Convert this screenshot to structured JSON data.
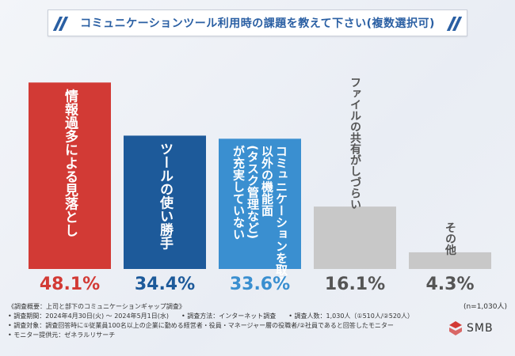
{
  "title": "コミュニケーションツール利用時の課題を教えて下さい(複数選択可)",
  "chart_data": {
    "type": "bar",
    "categories": [
      "情報過多による見落とし",
      "ツールの使い勝手",
      "コミュニケーションを取る以外の機能面(タスク管理など)が充実していない",
      "ファイルの共有がしづらい",
      "その他"
    ],
    "values": [
      48.1,
      34.4,
      33.6,
      16.1,
      4.3
    ],
    "value_labels": [
      "48.1%",
      "34.4%",
      "33.6%",
      "16.1%",
      "4.3%"
    ],
    "bar_label_columns": [
      [
        "情報過多による見落とし"
      ],
      [
        "ツールの使い勝手"
      ],
      [
        "コミュニケーションを取る",
        "以外の機能面",
        "(タスク管理など)",
        "が充実していない"
      ],
      [
        "ファイルの共有がしづらい"
      ],
      [
        "その他"
      ]
    ],
    "colors": [
      "#d23a35",
      "#1d5a9a",
      "#3a8fd0",
      "#c8c8c8",
      "#c8c8c8"
    ],
    "value_colors": [
      "#d23a35",
      "#1d5a9a",
      "#3a8fd0",
      "#555555",
      "#555555"
    ],
    "ylim": [
      0,
      50
    ],
    "n_label": "(n=1,030人)"
  },
  "notes": [
    "《調査概要：上司と部下のコミュニケーションギャップ調査》",
    "• 調査期間：2024年4月30日(火) ～ 2024年5月1日(水)　　• 調査方法：インターネット調査　　• 調査人数：1,030人（①510人/②520人）",
    "• 調査対象：調査回答時に①従業員100名以上の企業に勤める経営者・役員・マネージャー層の役職者/②社員であると回答したモニター",
    "• モニター提供元：ゼネラルリサーチ"
  ],
  "logo": {
    "text": "SMB"
  }
}
